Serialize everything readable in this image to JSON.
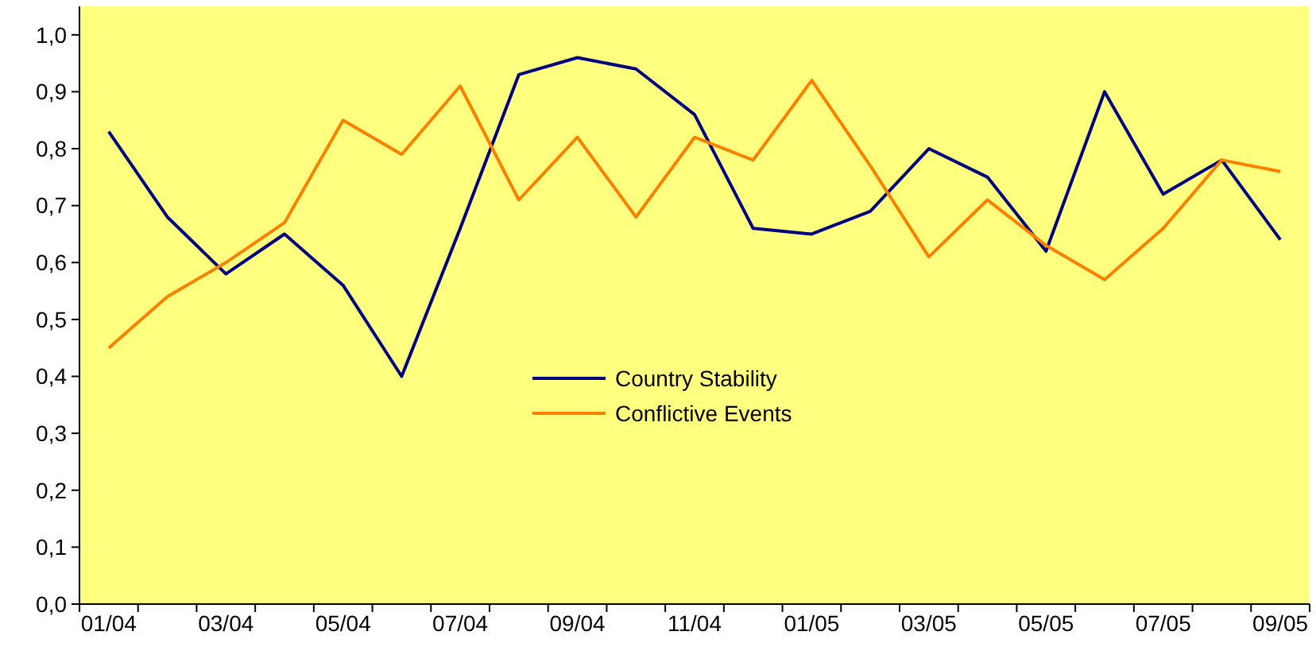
{
  "chart_data": {
    "type": "line",
    "categories": [
      "01/04",
      null,
      "03/04",
      null,
      "05/04",
      null,
      "07/04",
      null,
      "09/04",
      null,
      "11/04",
      null,
      "01/05",
      null,
      "03/05",
      null,
      "05/05",
      null,
      "07/05",
      null,
      "09/05"
    ],
    "series": [
      {
        "name": "Country Stability",
        "color": "#000080",
        "values": [
          0.83,
          0.68,
          0.58,
          0.65,
          0.56,
          0.4,
          0.66,
          0.93,
          0.96,
          0.94,
          0.86,
          0.66,
          0.65,
          0.69,
          0.8,
          0.75,
          0.62,
          0.9,
          0.72,
          0.78,
          0.64
        ]
      },
      {
        "name": "Conflictive Events",
        "color": "#ff8000",
        "values": [
          0.45,
          0.54,
          0.6,
          0.67,
          0.85,
          0.79,
          0.91,
          0.71,
          0.82,
          0.68,
          0.82,
          0.78,
          0.92,
          0.77,
          0.61,
          0.71,
          0.63,
          0.57,
          0.66,
          0.78,
          0.76
        ]
      }
    ],
    "ylim": [
      0,
      1.05
    ],
    "yticks": [
      {
        "value": 0,
        "label": "0,0"
      },
      {
        "value": 0.1,
        "label": "0,1"
      },
      {
        "value": 0.2,
        "label": "0,2"
      },
      {
        "value": 0.3,
        "label": "0,3"
      },
      {
        "value": 0.4,
        "label": "0,4"
      },
      {
        "value": 0.5,
        "label": "0,5"
      },
      {
        "value": 0.6,
        "label": "0,6"
      },
      {
        "value": 0.7,
        "label": "0,7"
      },
      {
        "value": 0.8,
        "label": "0,8"
      },
      {
        "value": 0.9,
        "label": "0,9"
      },
      {
        "value": 1,
        "label": "1,0"
      }
    ],
    "grid": false,
    "legend": "center",
    "marker": "none",
    "line_style": "solid"
  }
}
